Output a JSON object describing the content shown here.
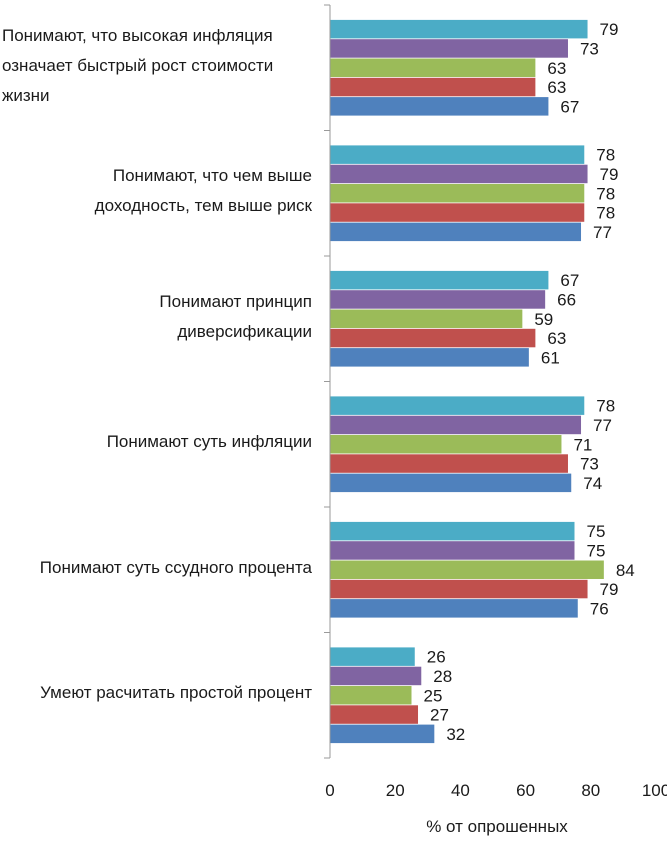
{
  "chart_data": {
    "type": "bar",
    "orientation": "horizontal",
    "categories": [
      "Понимают, что высокая инфляция\nозначает быстрый рост стоимости\nжизни",
      "Понимают, что чем выше\nдоходность, тем выше риск",
      "Понимают принцип\nдиверсификации",
      "Понимают суть инфляции",
      "Понимают суть ссудного процента",
      "Умеют расчитать простой процент"
    ],
    "series": [
      {
        "color": "#4BACC6",
        "values": [
          79,
          78,
          67,
          78,
          75,
          26
        ]
      },
      {
        "color": "#8064A2",
        "values": [
          73,
          79,
          66,
          77,
          75,
          28
        ]
      },
      {
        "color": "#9BBB59",
        "values": [
          63,
          78,
          59,
          71,
          84,
          25
        ]
      },
      {
        "color": "#C0504D",
        "values": [
          63,
          78,
          63,
          73,
          79,
          27
        ]
      },
      {
        "color": "#4F81BD",
        "values": [
          67,
          77,
          61,
          74,
          76,
          32
        ]
      }
    ],
    "xlabel": "% от опрошенных",
    "xlim": [
      0,
      100
    ],
    "xticks": [
      0,
      20,
      40,
      60,
      80,
      100
    ],
    "grid": false,
    "data_labels": true
  }
}
